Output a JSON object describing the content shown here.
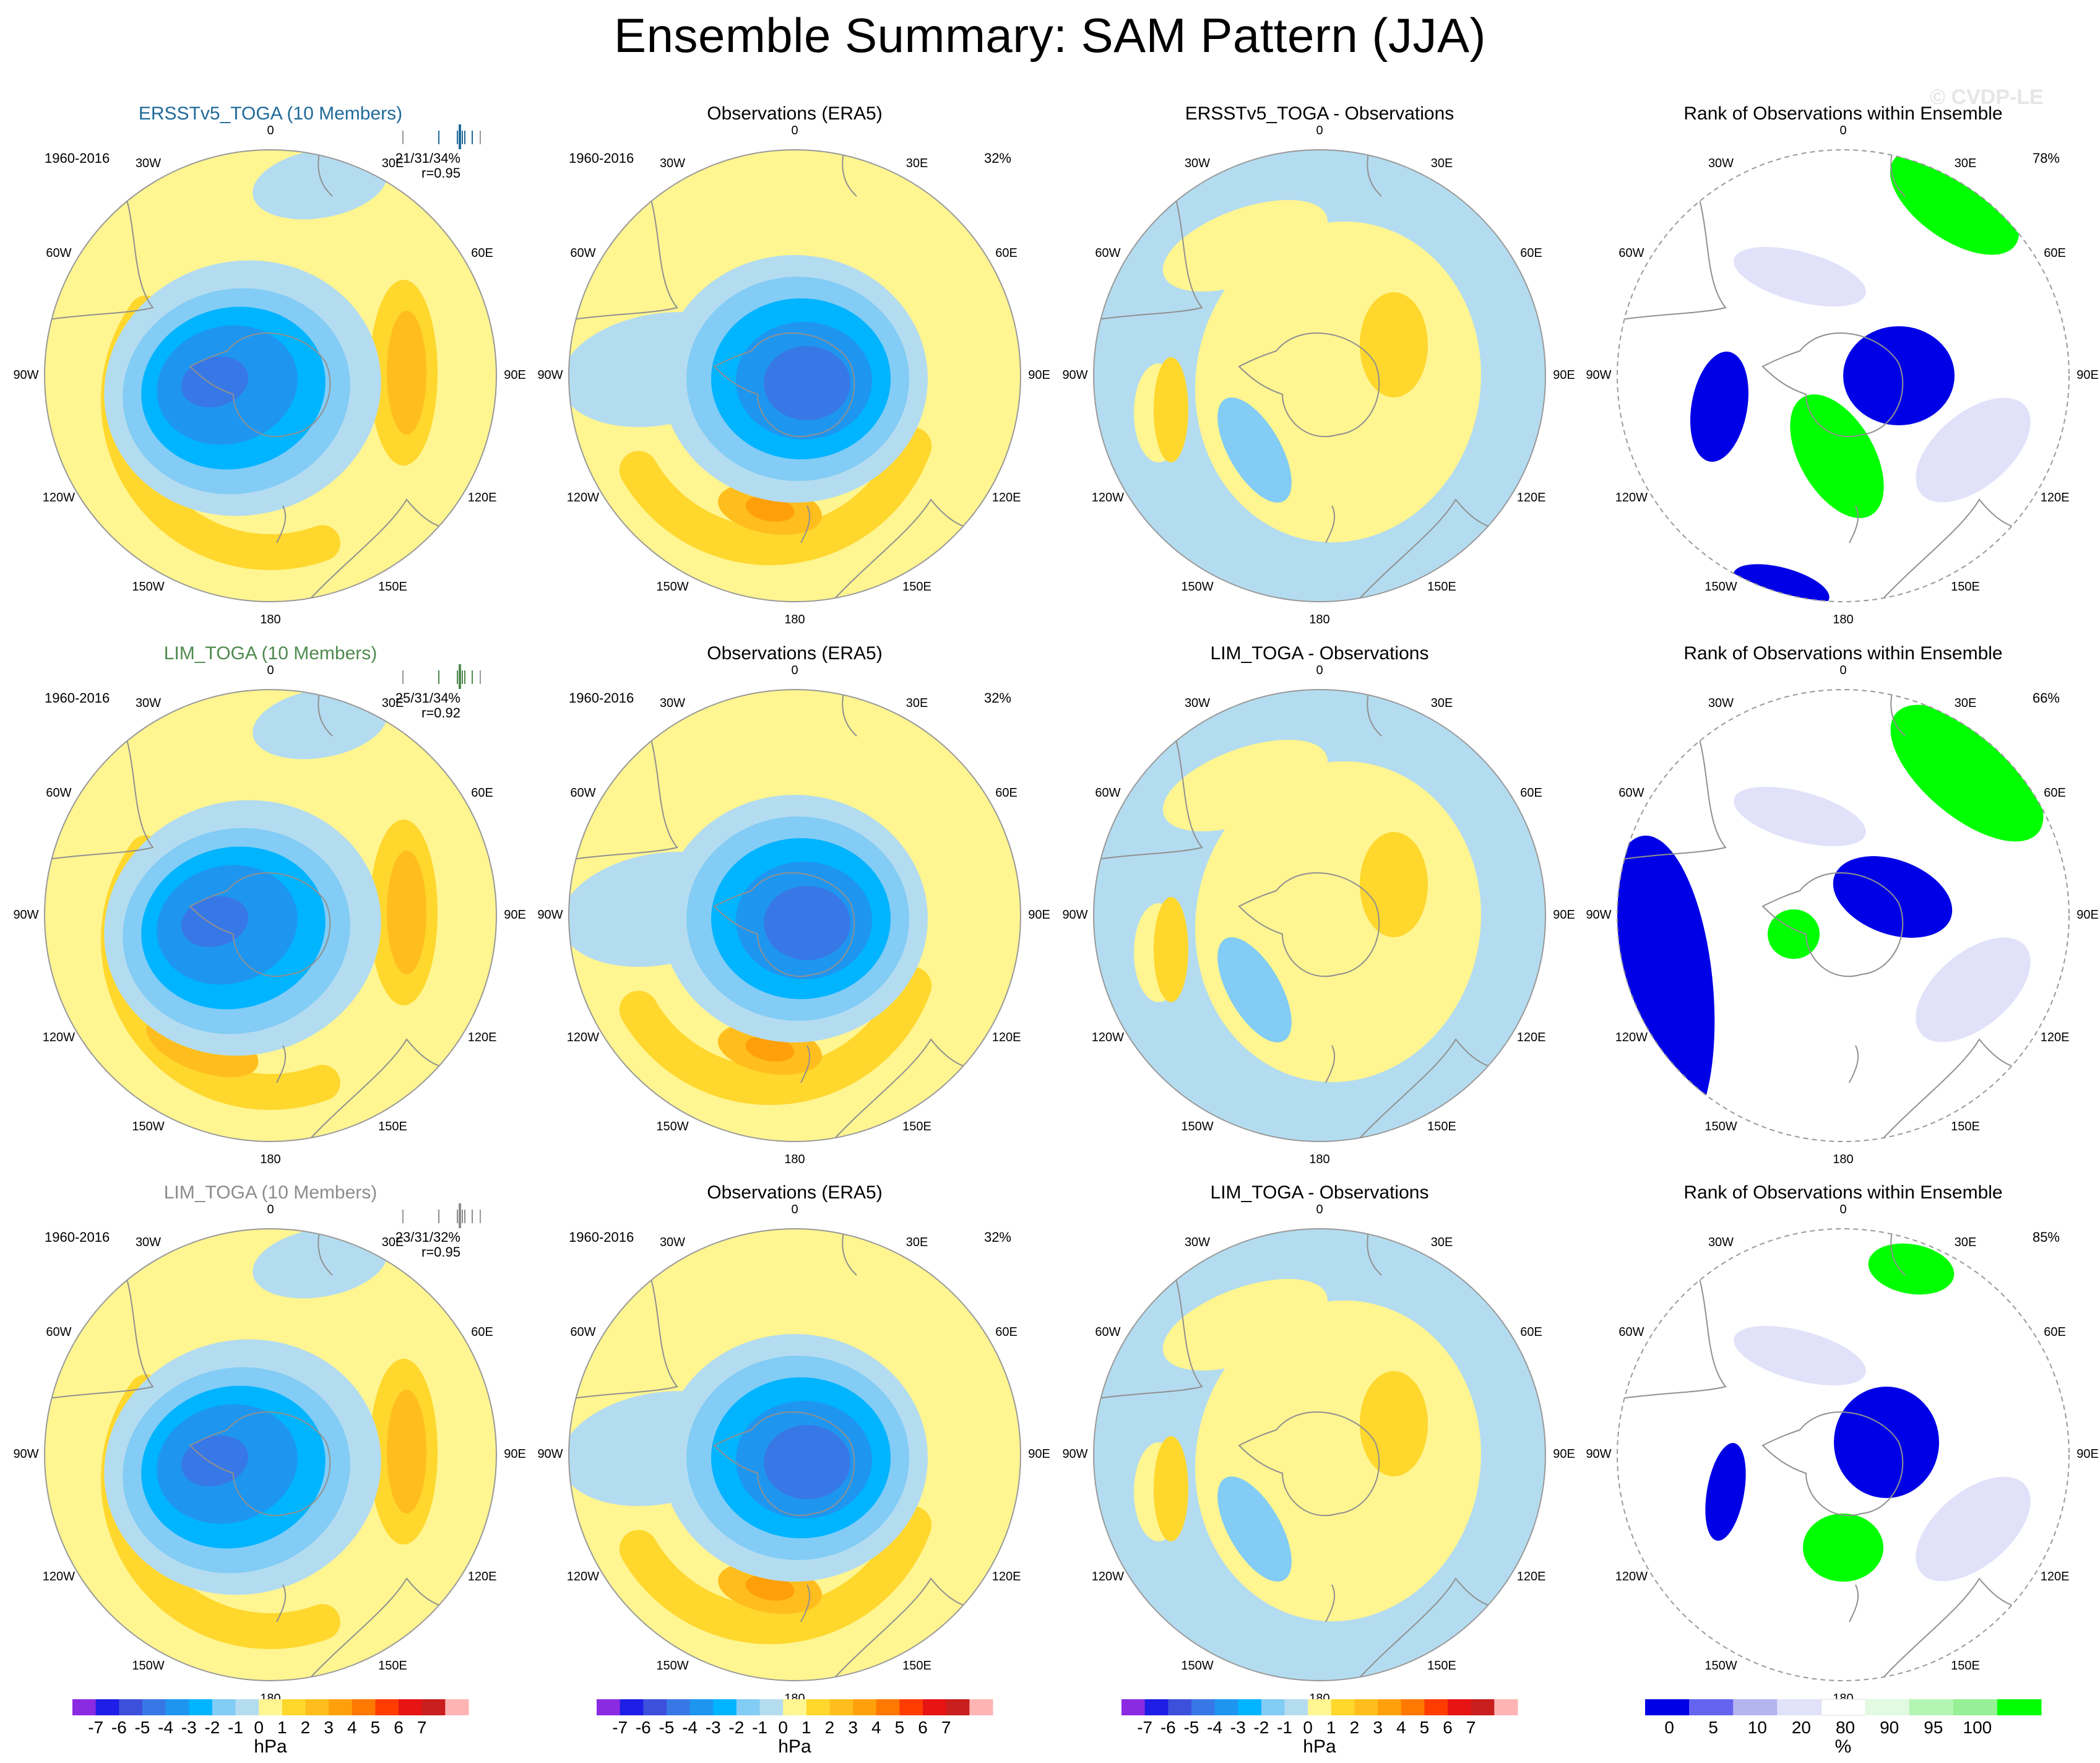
{
  "title": "Ensemble Summary: SAM Pattern (JJA)",
  "watermark": "© CVDP-LE",
  "colors": {
    "neg": [
      "#8a2be2",
      "#1e1ee6",
      "#3c50dc",
      "#3878e6",
      "#1e96f0",
      "#00b4ff",
      "#82ccf5",
      "#b4dcf0"
    ],
    "pos": [
      "#fff591",
      "#ffd72d",
      "#ffbe1e",
      "#ffa00a",
      "#ff7800",
      "#ff3c00",
      "#e61414",
      "#c81e1e",
      "#ffb4b4"
    ],
    "rank": [
      "#0000e6",
      "#6464f0",
      "#b4b4f0",
      "#e1e1fa",
      "#ffffff",
      "#e1fae1",
      "#b4f5b4",
      "#96f096",
      "#00ff00"
    ],
    "coast": "#909090",
    "frame": "#999999"
  },
  "map_labels": {
    "lon": [
      "0",
      "30E",
      "60E",
      "90E",
      "120E",
      "150E",
      "180",
      "150W",
      "120W",
      "90W",
      "60W",
      "30W"
    ]
  },
  "colorbars": {
    "hpa": {
      "labels": [
        "-7",
        "-6",
        "-5",
        "-4",
        "-3",
        "-2",
        "-1",
        "0",
        "1",
        "2",
        "3",
        "4",
        "5",
        "6",
        "7"
      ],
      "unit": "hPa"
    },
    "rank": {
      "labels": [
        "0",
        "5",
        "10",
        "20",
        "80",
        "90",
        "95",
        "100"
      ],
      "unit": "%"
    }
  },
  "rows": [
    {
      "panels": [
        {
          "title": "ERSSTv5_TOGA (10 Members)",
          "title_color": "#1f6a9a",
          "period": "1960-2016",
          "stat1": "21/31/34%",
          "stat2": "r=0.95"
        },
        {
          "title": "Observations (ERA5)",
          "period": "1960-2016",
          "pct": "32%"
        },
        {
          "title": "ERSSTv5_TOGA - Observations"
        },
        {
          "title": "Rank of Observations within Ensemble",
          "pct": "78%"
        }
      ]
    },
    {
      "panels": [
        {
          "title": "LIM_TOGA (10 Members)",
          "title_color": "#4f8a4f",
          "period": "1960-2016",
          "stat1": "25/31/34%",
          "stat2": "r=0.92"
        },
        {
          "title": "Observations (ERA5)",
          "period": "1960-2016",
          "pct": "32%"
        },
        {
          "title": "LIM_TOGA - Observations"
        },
        {
          "title": "Rank of Observations within Ensemble",
          "pct": "66%"
        }
      ]
    },
    {
      "panels": [
        {
          "title": "LIM_TOGA (10 Members)",
          "title_color": "#8c8c8c",
          "period": "1960-2016",
          "stat1": "23/31/32%",
          "stat2": "r=0.95"
        },
        {
          "title": "Observations (ERA5)",
          "period": "1960-2016",
          "pct": "32%"
        },
        {
          "title": "LIM_TOGA - Observations"
        },
        {
          "title": "Rank of Observations within Ensemble",
          "pct": "85%"
        }
      ]
    }
  ],
  "chart_data": {
    "type": "heatmap",
    "projection": "south-polar-stereographic",
    "title": "Ensemble Summary: SAM Pattern (JJA)",
    "variable_units": "hPa",
    "contour_levels": [
      -7,
      -6,
      -5,
      -4,
      -3,
      -2,
      -1,
      0,
      1,
      2,
      3,
      4,
      5,
      6,
      7
    ],
    "rank_levels": [
      0,
      5,
      10,
      20,
      80,
      90,
      95,
      100
    ],
    "panels": [
      {
        "row": 1,
        "col": 1,
        "title": "ERSSTv5_TOGA (10 Members)",
        "period": "1960-2016",
        "stats": "21/31/34%",
        "r": 0.95,
        "min_hpa": -4,
        "max_hpa": 3
      },
      {
        "row": 1,
        "col": 2,
        "title": "Observations (ERA5)",
        "period": "1960-2016",
        "pct_variance": 32,
        "min_hpa": -4,
        "max_hpa": 3
      },
      {
        "row": 1,
        "col": 3,
        "title": "ERSSTv5_TOGA - Observations",
        "min_hpa": -2,
        "max_hpa": 1
      },
      {
        "row": 1,
        "col": 4,
        "title": "Rank of Observations within Ensemble",
        "pct": 78
      },
      {
        "row": 2,
        "col": 1,
        "title": "LIM_TOGA (10 Members)",
        "period": "1960-2016",
        "stats": "25/31/34%",
        "r": 0.92,
        "min_hpa": -5,
        "max_hpa": 3
      },
      {
        "row": 2,
        "col": 2,
        "title": "Observations (ERA5)",
        "period": "1960-2016",
        "pct_variance": 32,
        "min_hpa": -4,
        "max_hpa": 3
      },
      {
        "row": 2,
        "col": 3,
        "title": "LIM_TOGA - Observations",
        "min_hpa": -2,
        "max_hpa": 1
      },
      {
        "row": 2,
        "col": 4,
        "title": "Rank of Observations within Ensemble",
        "pct": 66
      },
      {
        "row": 3,
        "col": 1,
        "title": "LIM_TOGA (10 Members)",
        "period": "1960-2016",
        "stats": "23/31/32%",
        "r": 0.95,
        "min_hpa": -4,
        "max_hpa": 3
      },
      {
        "row": 3,
        "col": 2,
        "title": "Observations (ERA5)",
        "period": "1960-2016",
        "pct_variance": 32,
        "min_hpa": -4,
        "max_hpa": 3
      },
      {
        "row": 3,
        "col": 3,
        "title": "LIM_TOGA - Observations",
        "min_hpa": -2,
        "max_hpa": 1
      },
      {
        "row": 3,
        "col": 4,
        "title": "Rank of Observations within Ensemble",
        "pct": 85
      }
    ]
  }
}
